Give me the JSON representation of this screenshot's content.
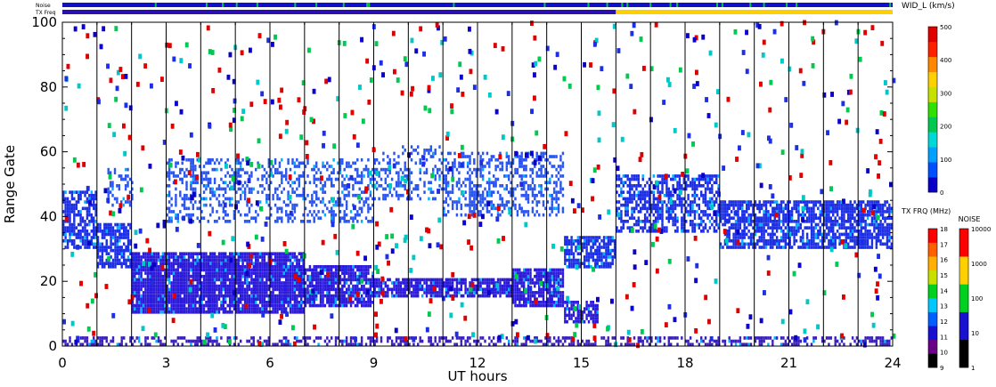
{
  "header": {
    "noise_label": "Noise",
    "txfreq_label": "TX Freq"
  },
  "chart_data": {
    "type": "heatmap",
    "xlabel": "UT hours",
    "ylabel": "Range Gate",
    "xlim": [
      0,
      24
    ],
    "ylim": [
      0,
      100
    ],
    "xticks": [
      0,
      3,
      6,
      9,
      12,
      15,
      18,
      21,
      24
    ],
    "yticks": [
      0,
      20,
      40,
      60,
      80,
      100
    ],
    "scan_lines_ut": [
      1,
      2,
      3,
      4,
      5,
      6,
      7,
      8,
      9,
      10,
      11,
      12,
      13,
      14,
      15,
      16,
      17,
      18,
      19,
      20,
      21,
      22,
      23
    ],
    "bands": [
      {
        "x": [
          0.0,
          1.0
        ],
        "y": [
          30,
          48
        ],
        "density": 0.7,
        "color": "#1c2fe6"
      },
      {
        "x": [
          1.0,
          2.0
        ],
        "y": [
          24,
          38
        ],
        "density": 0.75,
        "color": "#1c2fe6"
      },
      {
        "x": [
          1.3,
          2.0
        ],
        "y": [
          43,
          55
        ],
        "density": 0.4,
        "color": "#2a55f0"
      },
      {
        "x": [
          2.0,
          7.0
        ],
        "y": [
          10,
          29
        ],
        "density": 0.93,
        "color": "#2b1ad9"
      },
      {
        "x": [
          7.0,
          9.0
        ],
        "y": [
          12,
          25
        ],
        "density": 0.85,
        "color": "#2b1ad9"
      },
      {
        "x": [
          9.0,
          11.0
        ],
        "y": [
          15,
          21
        ],
        "density": 0.85,
        "color": "#2b1ad9"
      },
      {
        "x": [
          11.0,
          13.0
        ],
        "y": [
          15,
          21
        ],
        "density": 0.8,
        "color": "#2b1ad9"
      },
      {
        "x": [
          13.0,
          14.5
        ],
        "y": [
          12,
          24
        ],
        "density": 0.85,
        "color": "#2b1ad9"
      },
      {
        "x": [
          14.5,
          15.5
        ],
        "y": [
          7,
          14
        ],
        "density": 0.7,
        "color": "#2b1ad9"
      },
      {
        "x": [
          3.0,
          9.0
        ],
        "y": [
          38,
          58
        ],
        "density": 0.35,
        "color": "#2a55f0"
      },
      {
        "x": [
          9.0,
          11.0
        ],
        "y": [
          45,
          62
        ],
        "density": 0.3,
        "color": "#2a55f0"
      },
      {
        "x": [
          11.0,
          14.5
        ],
        "y": [
          40,
          60
        ],
        "density": 0.4,
        "color": "#2a55f0"
      },
      {
        "x": [
          14.5,
          16.0
        ],
        "y": [
          24,
          34
        ],
        "density": 0.75,
        "color": "#1c2fe6"
      },
      {
        "x": [
          16.0,
          19.0
        ],
        "y": [
          35,
          53
        ],
        "density": 0.6,
        "color": "#1c2fe6"
      },
      {
        "x": [
          19.0,
          24.0
        ],
        "y": [
          30,
          45
        ],
        "density": 0.75,
        "color": "#1c2fe6"
      },
      {
        "x": [
          0.0,
          24.0
        ],
        "y": [
          0,
          3
        ],
        "density": 0.45,
        "color": "#3a1fb8"
      }
    ],
    "colorbars": [
      {
        "title": "WID_L (km/s)",
        "ticks": [
          "0",
          "100",
          "200",
          "300",
          "400",
          "500"
        ],
        "colors": [
          "#0a00c8",
          "#0050ff",
          "#00a0ff",
          "#00d8d8",
          "#00c850",
          "#30e000",
          "#c8e000",
          "#ffd000",
          "#ff8800",
          "#ff2000",
          "#e00000"
        ]
      },
      {
        "title": "TX FRQ (MHz)",
        "ticks": [
          "9",
          "10",
          "11",
          "12",
          "13",
          "14",
          "15",
          "16",
          "17",
          "18"
        ],
        "colors": [
          "#000000",
          "#6a0088",
          "#1a10d0",
          "#0060ff",
          "#00c8ff",
          "#00d020",
          "#c8e000",
          "#ffb000",
          "#ff6000",
          "#ff0000"
        ]
      },
      {
        "title": "NOISE",
        "ticks": [
          "1",
          "10",
          "100",
          "1000",
          "10000"
        ],
        "colors": [
          "#000000",
          "#1a10d0",
          "#00d020",
          "#ffd000",
          "#ff0000"
        ]
      }
    ],
    "noise_strip": {
      "color": "#1010c8",
      "accent": "#00c850"
    },
    "txfreq_strip": {
      "segments": [
        {
          "from": 0.0,
          "to": 16.0,
          "color": "#2a10b0"
        },
        {
          "from": 16.0,
          "to": 24.0,
          "color": "#ffd000"
        }
      ]
    }
  }
}
